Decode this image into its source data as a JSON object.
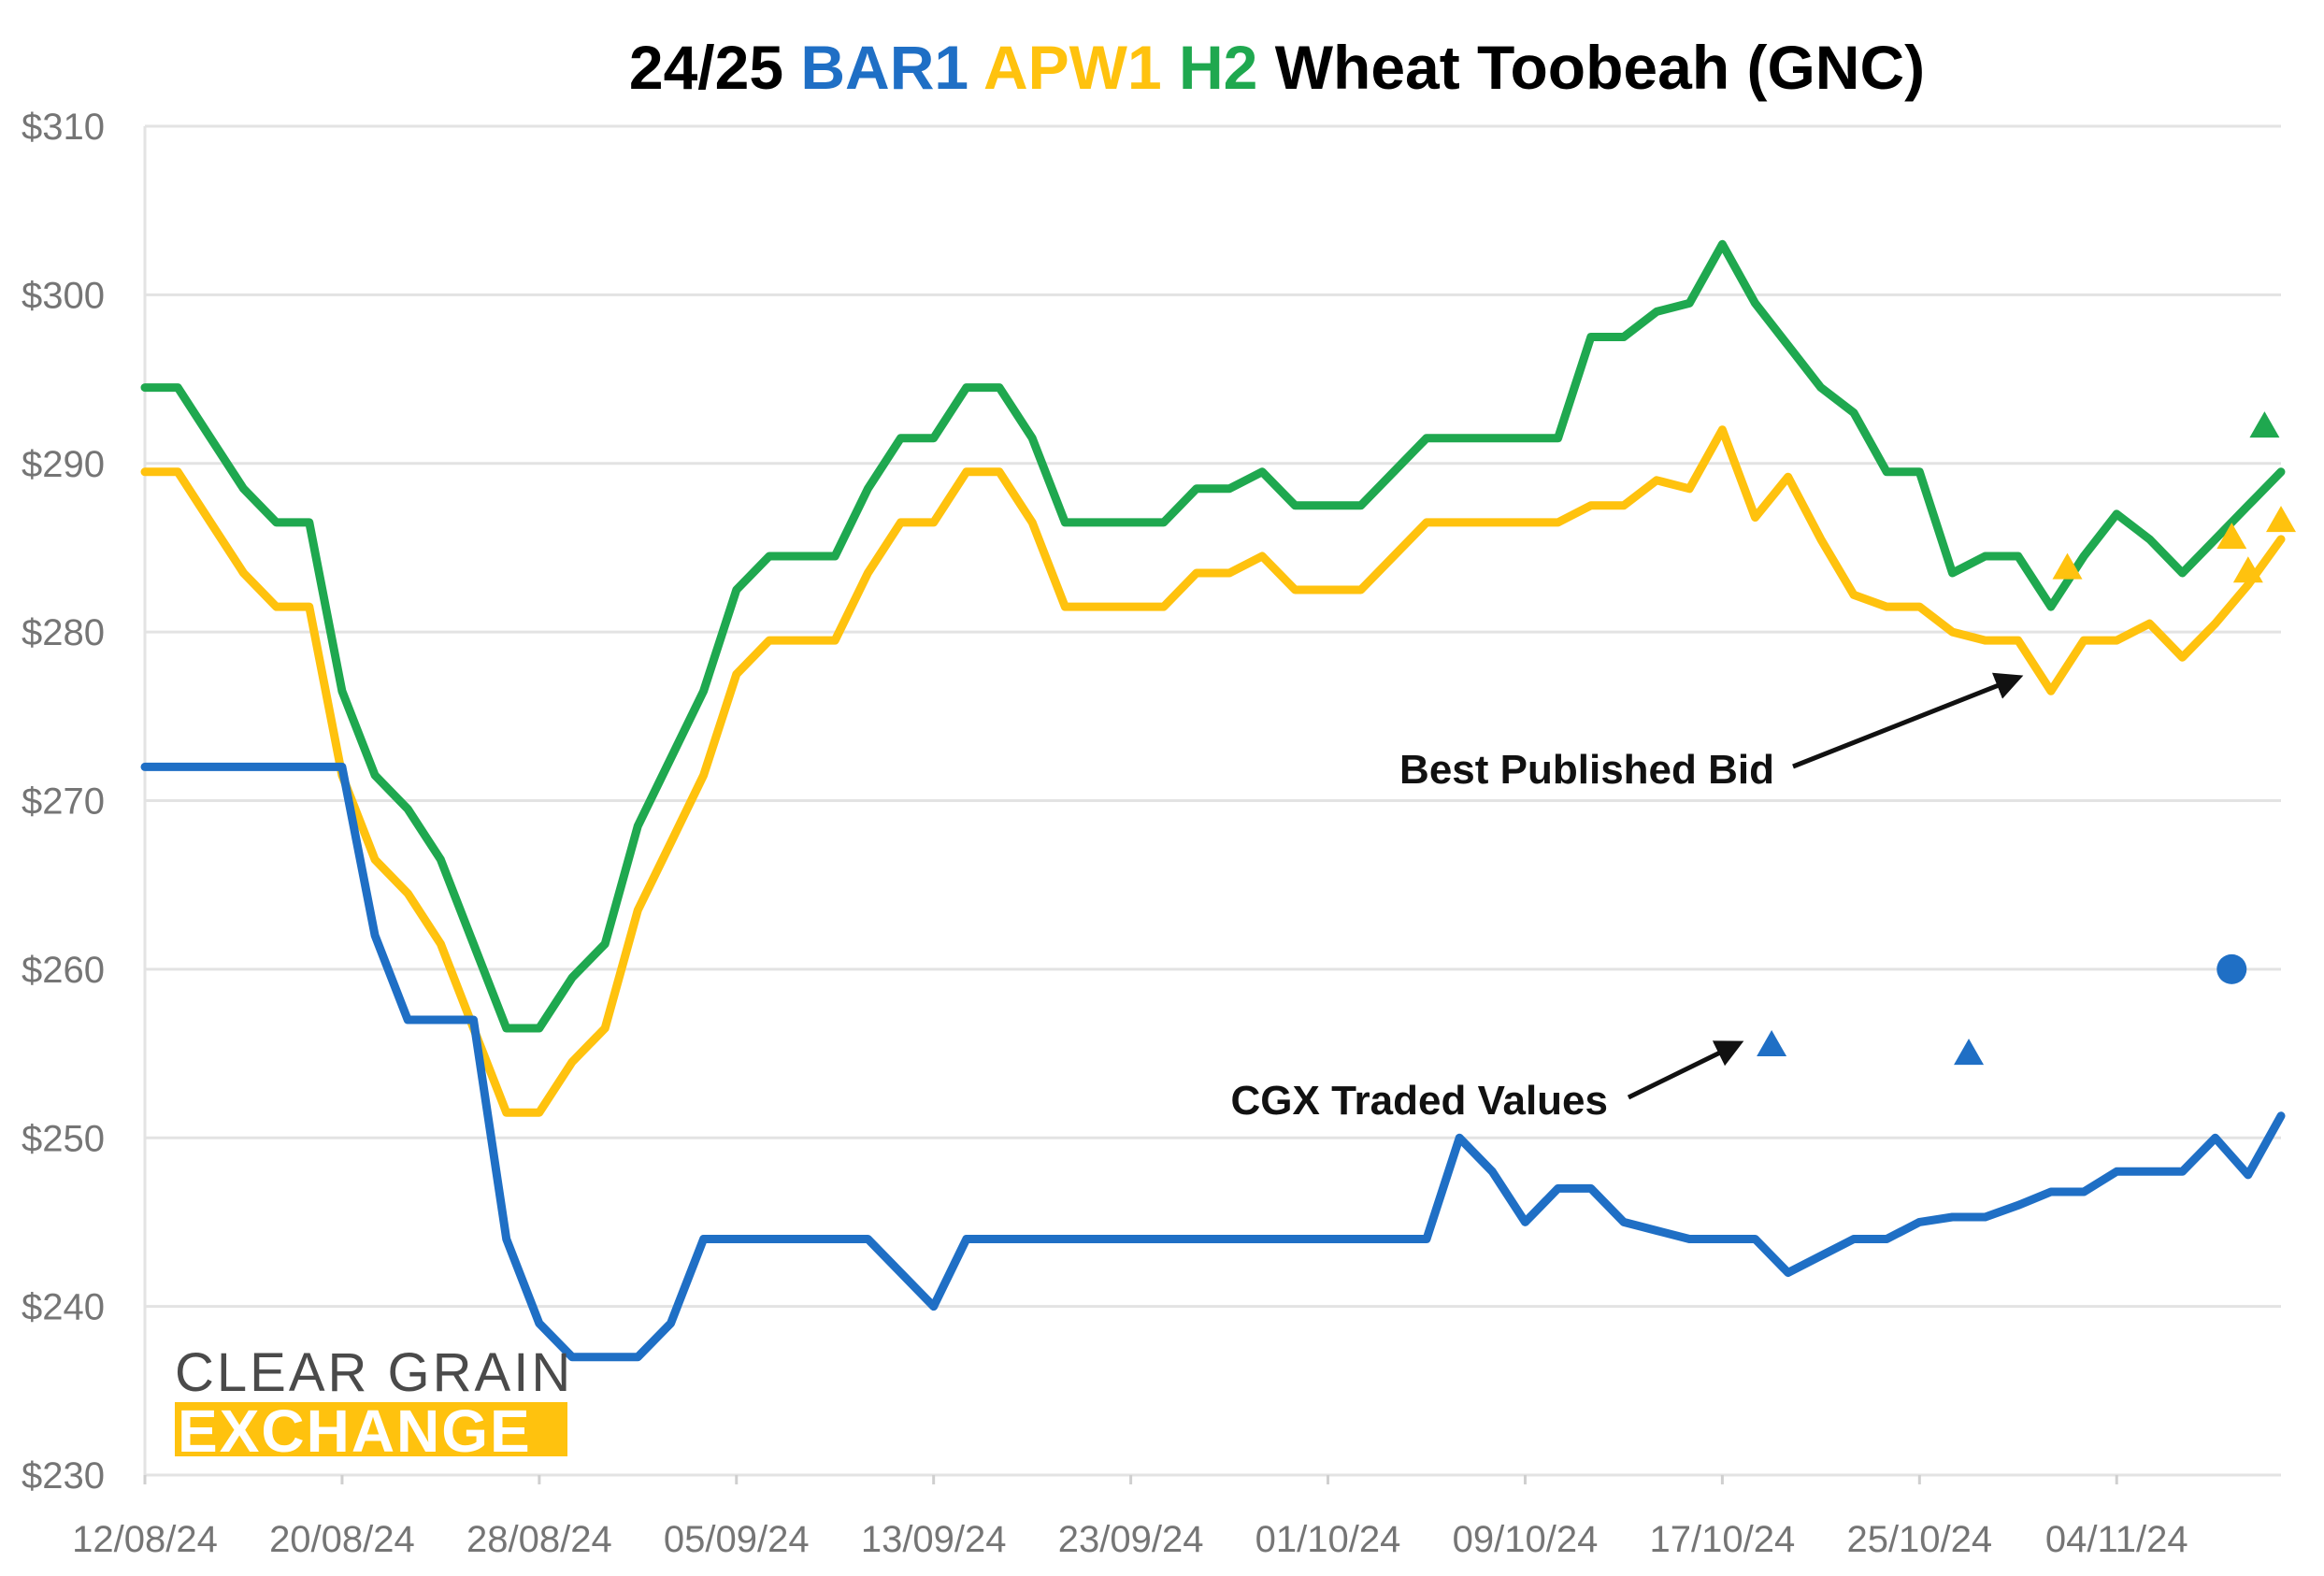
{
  "chart_data": {
    "type": "line",
    "title_parts": [
      {
        "text": "24/25 ",
        "color": "#000000"
      },
      {
        "text": "BAR1",
        "color": "#1F6FC5"
      },
      {
        "text": " ",
        "color": "#000000"
      },
      {
        "text": "APW1",
        "color": "#FFC20E"
      },
      {
        "text": " ",
        "color": "#000000"
      },
      {
        "text": "H2",
        "color": "#1FA84F"
      },
      {
        "text": " Wheat Toobeah (GNC)",
        "color": "#000000"
      }
    ],
    "x_tick_labels": [
      "12/08/24",
      "20/08/24",
      "28/08/24",
      "05/09/24",
      "13/09/24",
      "23/09/24",
      "01/10/24",
      "09/10/24",
      "17/10/24",
      "25/10/24",
      "04/11/24"
    ],
    "x_tick_indices": [
      0,
      6,
      12,
      18,
      24,
      30,
      36,
      42,
      48,
      54,
      60
    ],
    "x_count": 66,
    "y_ticks": [
      230,
      240,
      250,
      260,
      270,
      280,
      290,
      300,
      310
    ],
    "y_tick_labels": [
      "$230",
      "$240",
      "$250",
      "$260",
      "$270",
      "$280",
      "$290",
      "$300",
      "$310"
    ],
    "ylim": [
      230,
      310
    ],
    "grid": true,
    "series": [
      {
        "key": "H2",
        "color": "#1FA84F",
        "values": [
          294.5,
          294.5,
          291.5,
          288.5,
          286.5,
          286.5,
          276.5,
          271.5,
          269.5,
          266.5,
          261.5,
          256.5,
          256.5,
          259.5,
          261.5,
          268.5,
          272.5,
          276.5,
          282.5,
          284.5,
          284.5,
          284.5,
          288.5,
          291.5,
          291.5,
          294.5,
          294.5,
          291.5,
          286.5,
          286.5,
          286.5,
          286.5,
          288.5,
          288.5,
          289.5,
          287.5,
          287.5,
          287.5,
          289.5,
          291.5,
          291.5,
          291.5,
          291.5,
          291.5,
          297.5,
          297.5,
          299.0,
          299.5,
          303.0,
          299.5,
          297.0,
          294.5,
          293.0,
          289.5,
          289.5,
          283.5,
          284.5,
          284.5,
          281.5,
          284.5,
          287.0,
          285.5,
          283.5,
          285.5,
          287.5,
          289.5
        ]
      },
      {
        "key": "APW1",
        "color": "#FFC20E",
        "values": [
          289.5,
          289.5,
          286.5,
          283.5,
          281.5,
          281.5,
          271.5,
          266.5,
          264.5,
          261.5,
          256.5,
          251.5,
          251.5,
          254.5,
          256.5,
          263.5,
          267.5,
          271.5,
          277.5,
          279.5,
          279.5,
          279.5,
          283.5,
          286.5,
          286.5,
          289.5,
          289.5,
          286.5,
          281.5,
          281.5,
          281.5,
          281.5,
          283.5,
          283.5,
          284.5,
          282.5,
          282.5,
          282.5,
          284.5,
          286.5,
          286.5,
          286.5,
          286.5,
          286.5,
          287.5,
          287.5,
          289.0,
          288.5,
          292.0,
          286.8,
          289.2,
          285.5,
          282.2,
          281.5,
          281.5,
          280.0,
          279.5,
          279.5,
          276.5,
          279.5,
          279.5,
          280.5,
          278.5,
          280.5,
          282.8,
          285.5
        ]
      },
      {
        "key": "BAR1",
        "color": "#1F6FC5",
        "values": [
          272.0,
          272.0,
          272.0,
          272.0,
          272.0,
          272.0,
          272.0,
          262.0,
          257.0,
          257.0,
          257.0,
          244.0,
          239.0,
          237.0,
          237.0,
          237.0,
          239.0,
          244.0,
          244.0,
          244.0,
          244.0,
          244.0,
          244.0,
          242.0,
          240.0,
          244.0,
          244.0,
          244.0,
          244.0,
          244.0,
          244.0,
          244.0,
          244.0,
          244.0,
          244.0,
          244.0,
          244.0,
          244.0,
          244.0,
          244.0,
          250.0,
          248.0,
          245.0,
          247.0,
          247.0,
          245.0,
          244.5,
          244.0,
          244.0,
          244.0,
          242.0,
          243.0,
          244.0,
          244.0,
          245.0,
          245.3,
          245.3,
          246.0,
          246.8,
          246.8,
          248.0,
          248.0,
          248.0,
          250.0,
          247.8,
          251.3
        ]
      }
    ],
    "traded_points": [
      {
        "series": "H2",
        "marker": "triangle",
        "x": 64.5,
        "y": 292.2
      },
      {
        "series": "APW1",
        "marker": "triangle",
        "x": 58.5,
        "y": 283.8
      },
      {
        "series": "APW1",
        "marker": "triangle",
        "x": 63.5,
        "y": 285.6
      },
      {
        "series": "APW1",
        "marker": "triangle",
        "x": 64.0,
        "y": 283.6
      },
      {
        "series": "APW1",
        "marker": "triangle",
        "x": 65.0,
        "y": 286.6
      },
      {
        "series": "BAR1",
        "marker": "triangle",
        "x": 49.5,
        "y": 255.5
      },
      {
        "series": "BAR1",
        "marker": "triangle",
        "x": 55.5,
        "y": 255.0
      },
      {
        "series": "BAR1",
        "marker": "circle",
        "x": 63.5,
        "y": 260.0
      }
    ],
    "annotations": [
      {
        "text": "Best Published Bid",
        "target_x": 57.0,
        "target_y": 277.3
      },
      {
        "text": "CGX Traded Values",
        "target_x": 48.5,
        "target_y": 255.6
      }
    ]
  },
  "logo": {
    "line1": "CLEAR GRAIN",
    "line2": "EXCHANGE",
    "color": "#FFC20E"
  }
}
